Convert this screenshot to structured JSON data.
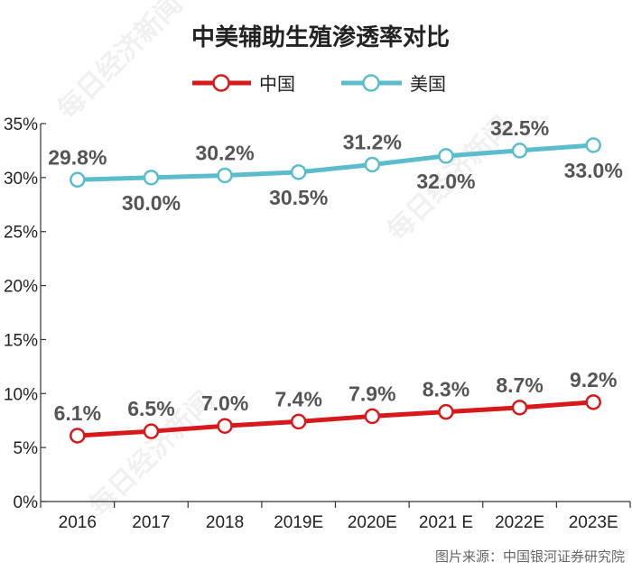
{
  "chart_data": {
    "type": "line",
    "title": "中美辅助生殖渗透率对比",
    "categories": [
      "2016",
      "2017",
      "2018",
      "2019E",
      "2020E",
      "2021 E",
      "2022E",
      "2023E"
    ],
    "series": [
      {
        "name": "中国",
        "values": [
          6.1,
          6.5,
          7.0,
          7.4,
          7.9,
          8.3,
          8.7,
          9.2
        ],
        "labels": [
          "6.1%",
          "6.5%",
          "7.0%",
          "7.4%",
          "7.9%",
          "8.3%",
          "8.7%",
          "9.2%"
        ],
        "color": "#d7191c"
      },
      {
        "name": "美国",
        "values": [
          29.8,
          30.0,
          30.2,
          30.5,
          31.2,
          32.0,
          32.5,
          33.0
        ],
        "labels": [
          "29.8%",
          "30.0%",
          "30.2%",
          "30.5%",
          "31.2%",
          "32.0%",
          "32.5%",
          "33.0%"
        ],
        "color": "#5bbccc"
      }
    ],
    "y_ticks": [
      "0%",
      "5%",
      "10%",
      "15%",
      "20%",
      "25%",
      "30%",
      "35%"
    ],
    "ylim": [
      0,
      35
    ],
    "grid": false,
    "legend": "top-center",
    "source": "图片来源：中国银河证券研究院",
    "watermark": "每日经济新闻"
  }
}
